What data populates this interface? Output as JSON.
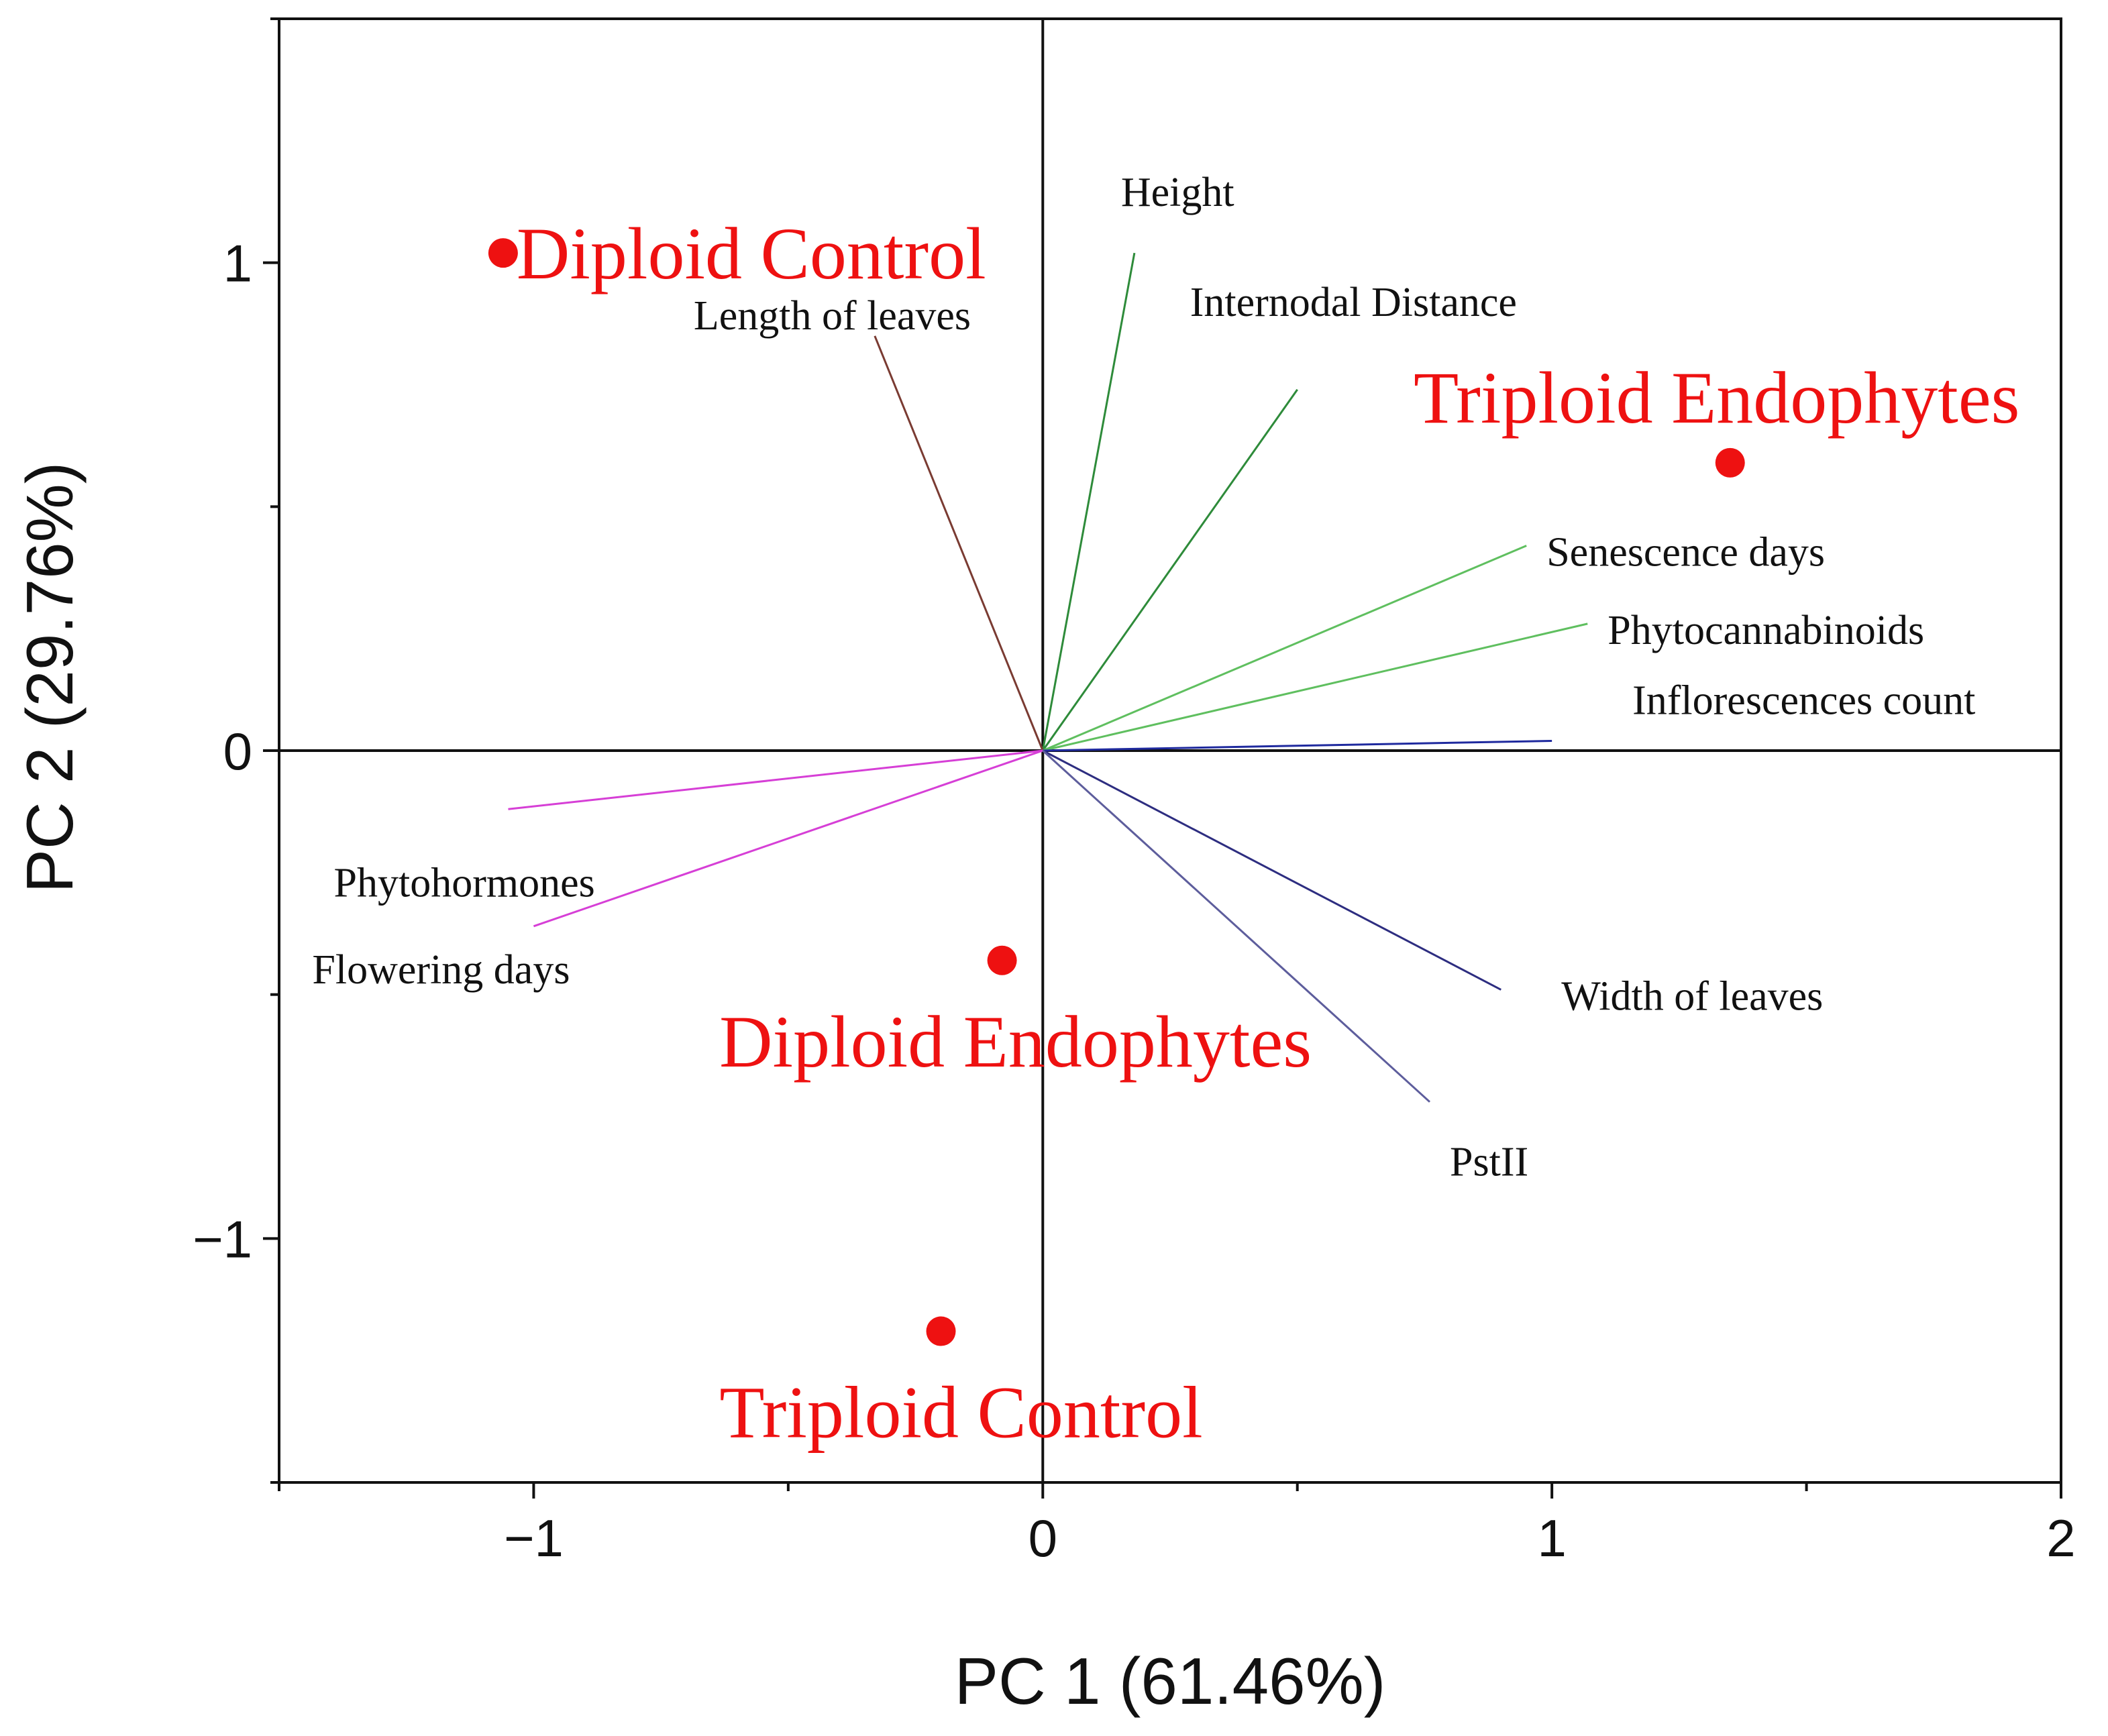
{
  "chart_data": {
    "type": "scatter",
    "subtype": "pca-biplot",
    "xlabel": "PC 1 (61.46%)",
    "ylabel": "PC 2 (29.76%)",
    "xlim": [
      -1.5,
      2.0
    ],
    "ylim": [
      -1.5,
      1.5
    ],
    "x_ticks": [
      -1,
      0,
      1,
      2
    ],
    "x_tick_labels": [
      "−1",
      "0",
      "1",
      "2"
    ],
    "y_ticks": [
      -1,
      0,
      1
    ],
    "y_tick_labels": [
      "−1",
      "0",
      "1"
    ],
    "x_minor_ticks": [
      -1.5,
      -0.5,
      0.5,
      1.5
    ],
    "y_minor_ticks": [
      -1.5,
      -0.5,
      0.5,
      1.5
    ],
    "grid": false,
    "zero_lines": true,
    "point_color": "#ee1111",
    "points": [
      {
        "label": "Diploid Control",
        "x": -1.06,
        "y": 1.02
      },
      {
        "label": "Triploid Endophytes",
        "x": 1.35,
        "y": 0.59
      },
      {
        "label": "Diploid Endophytes",
        "x": -0.08,
        "y": -0.43
      },
      {
        "label": "Triploid Control",
        "x": -0.2,
        "y": -1.19
      }
    ],
    "loadings": [
      {
        "label": "Height",
        "x": 0.18,
        "y": 1.02,
        "color": "#2e8b3a"
      },
      {
        "label": "Internodal Distance",
        "x": 0.5,
        "y": 0.74,
        "color": "#2e8b3a"
      },
      {
        "label": "Length of leaves",
        "x": -0.33,
        "y": 0.85,
        "color": "#7a3b32"
      },
      {
        "label": "Senescence days",
        "x": 0.95,
        "y": 0.42,
        "color": "#5fbf5f"
      },
      {
        "label": "Phytocannabinoids",
        "x": 1.07,
        "y": 0.26,
        "color": "#5fbf5f"
      },
      {
        "label": "Inflorescences count",
        "x": 1.0,
        "y": 0.02,
        "color": "#1f2a9e"
      },
      {
        "label": "Phytohormones",
        "x": -1.05,
        "y": -0.12,
        "color": "#d63fd6"
      },
      {
        "label": "Flowering days",
        "x": -1.0,
        "y": -0.36,
        "color": "#d63fd6"
      },
      {
        "label": "Width of leaves",
        "x": 0.9,
        "y": -0.49,
        "color": "#2d2d80"
      },
      {
        "label": "PstII",
        "x": 0.76,
        "y": -0.72,
        "color": "#5d5d9c"
      }
    ]
  }
}
